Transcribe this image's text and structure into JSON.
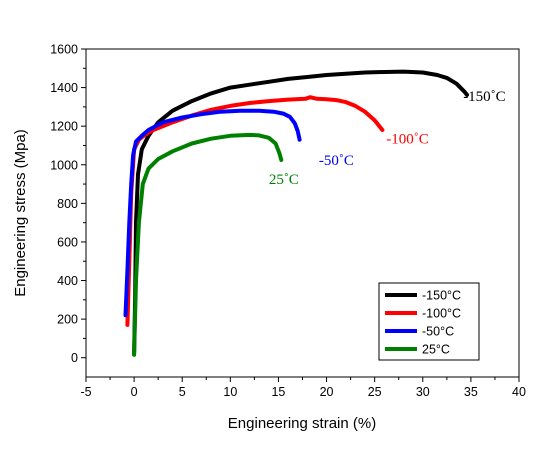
{
  "chart_data": {
    "type": "line",
    "xlabel": "Engineering strain (%)",
    "ylabel": "Engineering stress (Mpa)",
    "xlim": [
      -5,
      40
    ],
    "ylim": [
      -100,
      1600
    ],
    "xticks": [
      -5,
      0,
      5,
      10,
      15,
      20,
      25,
      30,
      35,
      40
    ],
    "yticks": [
      0,
      200,
      400,
      600,
      800,
      1000,
      1200,
      1400,
      1600
    ],
    "grid": false,
    "legend_position": "bottom-right",
    "series": [
      {
        "name": "-150°C",
        "color": "#000000",
        "points": [
          [
            0.0,
            20
          ],
          [
            0.1,
            300
          ],
          [
            0.2,
            700
          ],
          [
            0.4,
            950
          ],
          [
            0.8,
            1080
          ],
          [
            1.5,
            1150
          ],
          [
            2.5,
            1220
          ],
          [
            4,
            1280
          ],
          [
            6,
            1330
          ],
          [
            8,
            1370
          ],
          [
            10,
            1400
          ],
          [
            12,
            1415
          ],
          [
            14,
            1430
          ],
          [
            16,
            1445
          ],
          [
            18,
            1455
          ],
          [
            20,
            1465
          ],
          [
            22,
            1472
          ],
          [
            24,
            1478
          ],
          [
            26,
            1481
          ],
          [
            28,
            1483
          ],
          [
            30,
            1478
          ],
          [
            31.5,
            1465
          ],
          [
            32.5,
            1450
          ],
          [
            33.5,
            1420
          ],
          [
            34.3,
            1380
          ],
          [
            34.6,
            1362
          ]
        ]
      },
      {
        "name": "-100°C",
        "color": "#ff0000",
        "points": [
          [
            -0.7,
            170
          ],
          [
            -0.5,
            500
          ],
          [
            -0.3,
            850
          ],
          [
            0.0,
            1080
          ],
          [
            0.5,
            1130
          ],
          [
            1,
            1150
          ],
          [
            2,
            1180
          ],
          [
            4,
            1220
          ],
          [
            6,
            1255
          ],
          [
            8,
            1285
          ],
          [
            10,
            1305
          ],
          [
            12,
            1320
          ],
          [
            14,
            1330
          ],
          [
            16,
            1338
          ],
          [
            17.8,
            1342
          ],
          [
            18.3,
            1350
          ],
          [
            19,
            1342
          ],
          [
            20,
            1340
          ],
          [
            21,
            1335
          ],
          [
            22,
            1325
          ],
          [
            23,
            1305
          ],
          [
            24,
            1275
          ],
          [
            25,
            1230
          ],
          [
            25.8,
            1180
          ]
        ]
      },
      {
        "name": "-50°C",
        "color": "#0000ff",
        "points": [
          [
            -0.9,
            220
          ],
          [
            -0.7,
            450
          ],
          [
            -0.5,
            700
          ],
          [
            -0.3,
            900
          ],
          [
            -0.1,
            1050
          ],
          [
            0.2,
            1120
          ],
          [
            0.8,
            1150
          ],
          [
            1.5,
            1180
          ],
          [
            3,
            1220
          ],
          [
            5,
            1245
          ],
          [
            7,
            1262
          ],
          [
            9,
            1275
          ],
          [
            11,
            1280
          ],
          [
            13,
            1280
          ],
          [
            14.5,
            1275
          ],
          [
            15.5,
            1265
          ],
          [
            16.2,
            1248
          ],
          [
            16.7,
            1215
          ],
          [
            17,
            1175
          ],
          [
            17.2,
            1130
          ]
        ]
      },
      {
        "name": "25°C",
        "color": "#008000",
        "points": [
          [
            0.0,
            15
          ],
          [
            0.2,
            400
          ],
          [
            0.5,
            700
          ],
          [
            0.9,
            900
          ],
          [
            1.5,
            980
          ],
          [
            2.5,
            1030
          ],
          [
            4,
            1070
          ],
          [
            6,
            1110
          ],
          [
            8,
            1135
          ],
          [
            10,
            1150
          ],
          [
            12,
            1155
          ],
          [
            13,
            1152
          ],
          [
            14,
            1140
          ],
          [
            14.7,
            1110
          ],
          [
            15.1,
            1060
          ],
          [
            15.3,
            1025
          ]
        ]
      }
    ],
    "annotations": [
      {
        "text": "-150˚C",
        "x": 34.2,
        "y": 1330,
        "color": "#000000"
      },
      {
        "text": "-100˚C",
        "x": 26.2,
        "y": 1110,
        "color": "#ff0000"
      },
      {
        "text": "-50˚C",
        "x": 19.2,
        "y": 1000,
        "color": "#0000ff"
      },
      {
        "text": "25˚C",
        "x": 14.0,
        "y": 900,
        "color": "#008000"
      }
    ]
  }
}
